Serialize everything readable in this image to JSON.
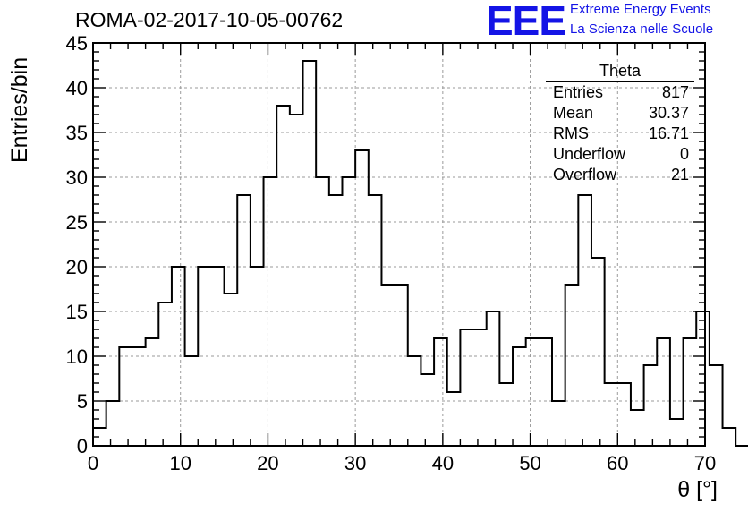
{
  "header": {
    "title": "ROMA-02-2017-10-05-00762",
    "logo_text": "EEE",
    "logo_line1": "Extreme Energy Events",
    "logo_line2": "La Scienza nelle Scuole"
  },
  "colors": {
    "logo": "#1414e6",
    "line": "#000000",
    "grid": "#9a9a9a"
  },
  "stats": {
    "title": "Theta",
    "rows": [
      {
        "label": "Entries",
        "value": "817"
      },
      {
        "label": "Mean",
        "value": "30.37"
      },
      {
        "label": "RMS",
        "value": "16.71"
      },
      {
        "label": "Underflow",
        "value": "0"
      },
      {
        "label": "Overflow",
        "value": "21"
      }
    ]
  },
  "chart_data": {
    "type": "bar",
    "style": "step-histogram",
    "xlabel": "θ [°]",
    "ylabel": "Entries/bin",
    "xlim": [
      0,
      70
    ],
    "ylim": [
      0,
      45
    ],
    "grid": true,
    "x_ticks": [
      "0",
      "10",
      "20",
      "30",
      "40",
      "50",
      "60",
      "70"
    ],
    "y_ticks": [
      "0",
      "5",
      "10",
      "15",
      "20",
      "25",
      "30",
      "35",
      "40",
      "45"
    ],
    "bin_width": 1.5,
    "bin_edges_start": 0,
    "values": [
      2,
      5,
      11,
      11,
      12,
      16,
      20,
      10,
      20,
      20,
      17,
      28,
      20,
      30,
      38,
      37,
      43,
      30,
      28,
      30,
      33,
      28,
      18,
      18,
      10,
      8,
      12,
      6,
      13,
      13,
      15,
      7,
      11,
      12,
      12,
      5,
      18,
      28,
      21,
      7,
      7,
      4,
      9,
      12,
      3,
      12,
      15,
      9,
      2,
      0
    ]
  }
}
